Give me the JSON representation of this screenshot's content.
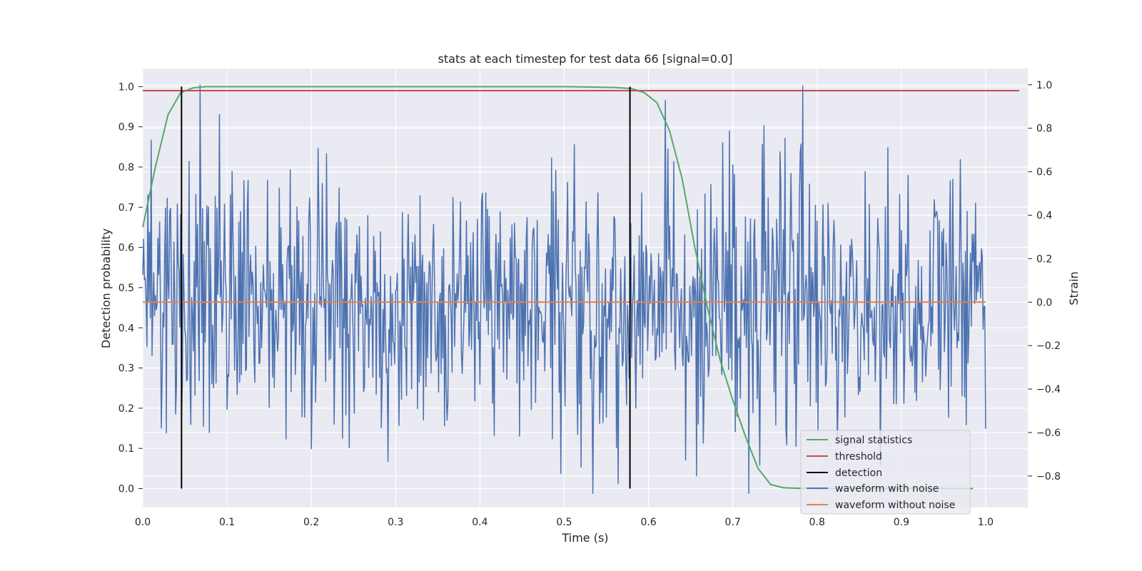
{
  "chart_data": {
    "type": "line",
    "title": "stats at each timestep for test data 66 [signal=0.0]",
    "xlabel": "Time (s)",
    "ylabel_left": "Detection probability",
    "ylabel_right": "Strain",
    "xlim": [
      0.0,
      1.05
    ],
    "ylim_left": [
      -0.047,
      1.045
    ],
    "ylim_right": [
      -0.945,
      1.075
    ],
    "x_ticks": [
      "0.0",
      "0.1",
      "0.2",
      "0.3",
      "0.4",
      "0.5",
      "0.6",
      "0.7",
      "0.8",
      "0.9",
      "1.0"
    ],
    "y_left_ticks": [
      "0.0",
      "0.1",
      "0.2",
      "0.3",
      "0.4",
      "0.5",
      "0.6",
      "0.7",
      "0.8",
      "0.9",
      "1.0"
    ],
    "y_right_ticks": [
      "−0.8",
      "−0.6",
      "−0.4",
      "−0.2",
      "0.0",
      "0.2",
      "0.4",
      "0.6",
      "0.8",
      "1.0"
    ],
    "grid": true,
    "legend_position": "lower-right",
    "colors": {
      "signal_statistics": "#55a868",
      "threshold": "#c44e52",
      "detection": "#000000",
      "waveform_with_noise": "#4c72b0",
      "waveform_without_noise": "#dd8452",
      "plot_background": "#eaeaf2",
      "grid": "#ffffff"
    },
    "series": [
      {
        "name": "signal statistics",
        "axis": "left",
        "x": [
          0.0,
          0.015,
          0.03,
          0.045,
          0.06,
          0.075,
          0.1,
          0.2,
          0.3,
          0.4,
          0.5,
          0.56,
          0.58,
          0.595,
          0.61,
          0.625,
          0.64,
          0.655,
          0.67,
          0.685,
          0.7,
          0.715,
          0.73,
          0.745,
          0.76,
          0.775,
          0.8,
          0.85,
          0.9,
          0.95,
          0.985
        ],
        "y": [
          0.65,
          0.8,
          0.93,
          0.985,
          0.997,
          1.0,
          1.0,
          1.0,
          1.0,
          1.0,
          1.0,
          0.998,
          0.995,
          0.985,
          0.96,
          0.89,
          0.77,
          0.6,
          0.45,
          0.32,
          0.22,
          0.13,
          0.05,
          0.01,
          0.002,
          0.001,
          0.0,
          0.0,
          0.0,
          0.0,
          0.0
        ]
      },
      {
        "name": "threshold",
        "axis": "left",
        "x": [
          0.0,
          1.04
        ],
        "y": [
          0.99,
          0.99
        ]
      },
      {
        "name": "detection",
        "axis": "left",
        "x_positions": [
          0.046,
          0.578
        ],
        "y_range": [
          0.0,
          1.0
        ]
      },
      {
        "name": "waveform with noise",
        "axis": "right",
        "x_range": [
          0.0,
          1.0
        ],
        "n_points": 1001,
        "mean": 0.0,
        "approx_std": 0.3,
        "approx_range": [
          -0.88,
          1.0
        ]
      },
      {
        "name": "waveform without noise",
        "axis": "right",
        "x": [
          0.0,
          1.0
        ],
        "y": [
          0.0,
          0.0
        ]
      }
    ]
  }
}
